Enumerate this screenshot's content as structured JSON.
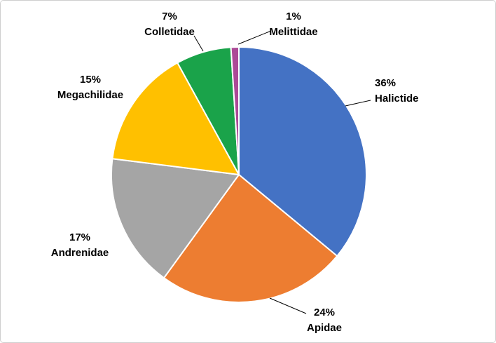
{
  "figure": {
    "background_color": "#FFFFFF",
    "border_color": "#CFCFCF"
  },
  "chart_data": {
    "type": "pie",
    "title": "",
    "categories": [
      "Halictide",
      "Apidae",
      "Andrenidae",
      "Megachilidae",
      "Colletidae",
      "Melittidae"
    ],
    "values": [
      36,
      24,
      17,
      15,
      7,
      1
    ],
    "labels": [
      {
        "pct": "36%",
        "name": "Halictide"
      },
      {
        "pct": "24%",
        "name": "Apidae"
      },
      {
        "pct": "17%",
        "name": "Andrenidae"
      },
      {
        "pct": "15%",
        "name": "Megachilidae"
      },
      {
        "pct": "7%",
        "name": "Colletidae"
      },
      {
        "pct": "1%",
        "name": "Melittidae"
      }
    ],
    "colors": [
      "#4472C4",
      "#ED7D31",
      "#A5A5A5",
      "#FFC000",
      "#1AA34A",
      "#AC4A97"
    ],
    "slice_border_color": "#FFFFFF",
    "start_angle_deg": 0,
    "direction": "clockwise",
    "legend": "none",
    "data_labels": "outside with leader lines"
  }
}
